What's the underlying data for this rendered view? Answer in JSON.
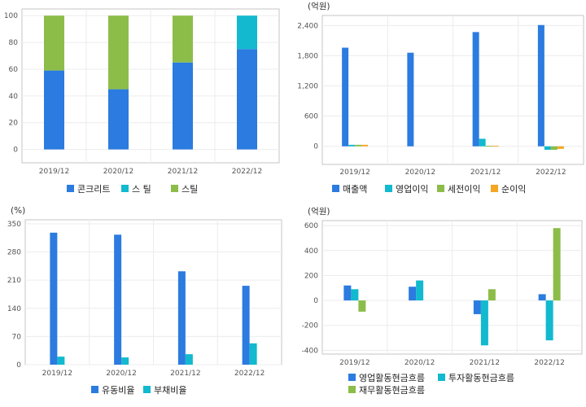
{
  "colors": {
    "blue": "#2b7be0",
    "cyan": "#12b9cf",
    "green": "#8cbd49",
    "orange": "#f5a623",
    "plot_border": "#c6c6c6",
    "grid": "#ececec"
  },
  "chart_data": [
    {
      "type": "bar",
      "stacked": true,
      "unit": "",
      "categories": [
        "2019/12",
        "2020/12",
        "2021/12",
        "2022/12"
      ],
      "series": [
        {
          "name": "콘크리트",
          "color": "#2b7be0",
          "values": [
            59,
            45,
            65,
            75
          ]
        },
        {
          "name": "스 틸",
          "color": "#12b9cf",
          "values": [
            0,
            0,
            0,
            25
          ]
        },
        {
          "name": "스틸",
          "color": "#8cbd49",
          "values": [
            41,
            55,
            35,
            0
          ]
        }
      ],
      "yticks": [
        0,
        20,
        40,
        60,
        80,
        100
      ],
      "ylim": [
        -10,
        105
      ],
      "grid": true,
      "legend_position": "bottom"
    },
    {
      "type": "bar",
      "unit": "(억원)",
      "categories": [
        "2019/12",
        "2020/12",
        "2021/12",
        "2022/12"
      ],
      "series": [
        {
          "name": "매출액",
          "color": "#2b7be0",
          "values": [
            1960,
            1860,
            2270,
            2410
          ]
        },
        {
          "name": "영업이익",
          "color": "#12b9cf",
          "values": [
            30,
            0,
            150,
            -70
          ]
        },
        {
          "name": "세전이익",
          "color": "#8cbd49",
          "values": [
            30,
            0,
            10,
            -70
          ]
        },
        {
          "name": "순이익",
          "color": "#f5a623",
          "values": [
            30,
            0,
            10,
            -50
          ]
        }
      ],
      "yticks": [
        0,
        600,
        1200,
        1800,
        2400
      ],
      "ytick_labels": [
        "0",
        "600",
        "1,200",
        "1,800",
        "2,400"
      ],
      "ylim": [
        -360,
        2600
      ],
      "grid": true,
      "legend_position": "bottom"
    },
    {
      "type": "bar",
      "unit": "(%)",
      "categories": [
        "2019/12",
        "2020/12",
        "2021/12",
        "2022/12"
      ],
      "series": [
        {
          "name": "유동비율",
          "color": "#2b7be0",
          "values": [
            328,
            323,
            232,
            196
          ]
        },
        {
          "name": "부채비율",
          "color": "#12b9cf",
          "values": [
            20,
            18,
            26,
            53
          ]
        }
      ],
      "yticks": [
        0,
        70,
        140,
        210,
        280,
        350
      ],
      "ylim": [
        0,
        360
      ],
      "grid": true,
      "legend_position": "bottom"
    },
    {
      "type": "bar",
      "unit": "(억원)",
      "categories": [
        "2019/12",
        "2020/12",
        "2021/12",
        "2022/12"
      ],
      "series": [
        {
          "name": "영업활동현금흐름",
          "color": "#2b7be0",
          "values": [
            120,
            110,
            -110,
            50
          ]
        },
        {
          "name": "투자활동현금흐름",
          "color": "#12b9cf",
          "values": [
            90,
            160,
            -360,
            -320
          ]
        },
        {
          "name": "재무활동현금흐름",
          "color": "#8cbd49",
          "values": [
            -90,
            0,
            90,
            580
          ]
        }
      ],
      "yticks": [
        -400,
        -200,
        0,
        200,
        400,
        600
      ],
      "ylim": [
        -430,
        640
      ],
      "grid": true,
      "legend_position": "bottom"
    }
  ]
}
